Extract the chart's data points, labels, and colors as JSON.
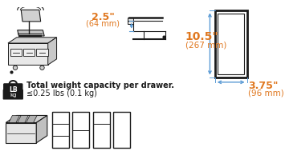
{
  "bg_color": "#ffffff",
  "orange_color": "#e07820",
  "blue_color": "#5b9bd5",
  "dark_color": "#1a1a1a",
  "gray_dark": "#555555",
  "gray_mid": "#888888",
  "gray_light": "#bbbbbb",
  "gray_fill": "#cccccc",
  "dim_25_in": "2.5\"",
  "dim_25_mm": "(64 mm)",
  "dim_105_in": "10.5\"",
  "dim_105_mm": "(267 mm)",
  "dim_375_in": "3.75\"",
  "dim_375_mm": "(96 mm)",
  "weight_line1": "Total weight capacity per drawer.",
  "weight_line2": "≤0.25 lbs (0.1 kg)"
}
